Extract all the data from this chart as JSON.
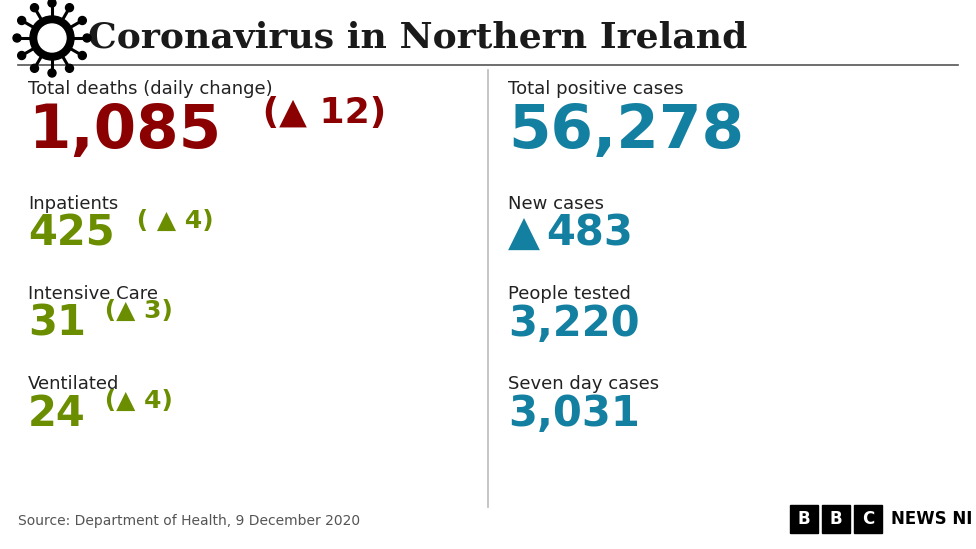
{
  "title": "Coronavirus in Northern Ireland",
  "bg_color": "#ffffff",
  "title_color": "#1a1a1a",
  "header_line_color": "#555555",
  "left_panel": {
    "label1": "Total deaths (daily change)",
    "value1": "1,085",
    "change1": " (▲ 12)",
    "value1_color": "#8b0000",
    "change1_color": "#8b0000",
    "label2": "Inpatients",
    "value2": "425",
    "change2": " ( ▲ 4)",
    "value2_color": "#6b8e00",
    "change2_color": "#6b8e00",
    "label3": "Intensive Care",
    "value3": "31",
    "change3": " (▲ 3)",
    "value3_color": "#6b8e00",
    "change3_color": "#6b8e00",
    "label4": "Ventilated",
    "value4": "24",
    "change4": " (▲ 4)",
    "value4_color": "#6b8e00",
    "change4_color": "#6b8e00"
  },
  "right_panel": {
    "label1": "Total positive cases",
    "value1": "56,278",
    "value1_color": "#1380a1",
    "label2": "New cases",
    "value2_arrow": "▲",
    "value2_num": "483",
    "value2_color": "#1380a1",
    "label3": "People tested",
    "value3": "3,220",
    "value3_color": "#1380a1",
    "label4": "Seven day cases",
    "value4": "3,031",
    "value4_color": "#1380a1"
  },
  "source_text": "Source: Department of Health, 9 December 2020",
  "source_color": "#555555",
  "title_fontsize": 26,
  "label_fontsize": 13,
  "big_value_fontsize": 44,
  "medium_value_fontsize": 30,
  "change_fontsize_big": 26,
  "change_fontsize_medium": 18,
  "label_color": "#222222",
  "label_fontweight": "normal"
}
